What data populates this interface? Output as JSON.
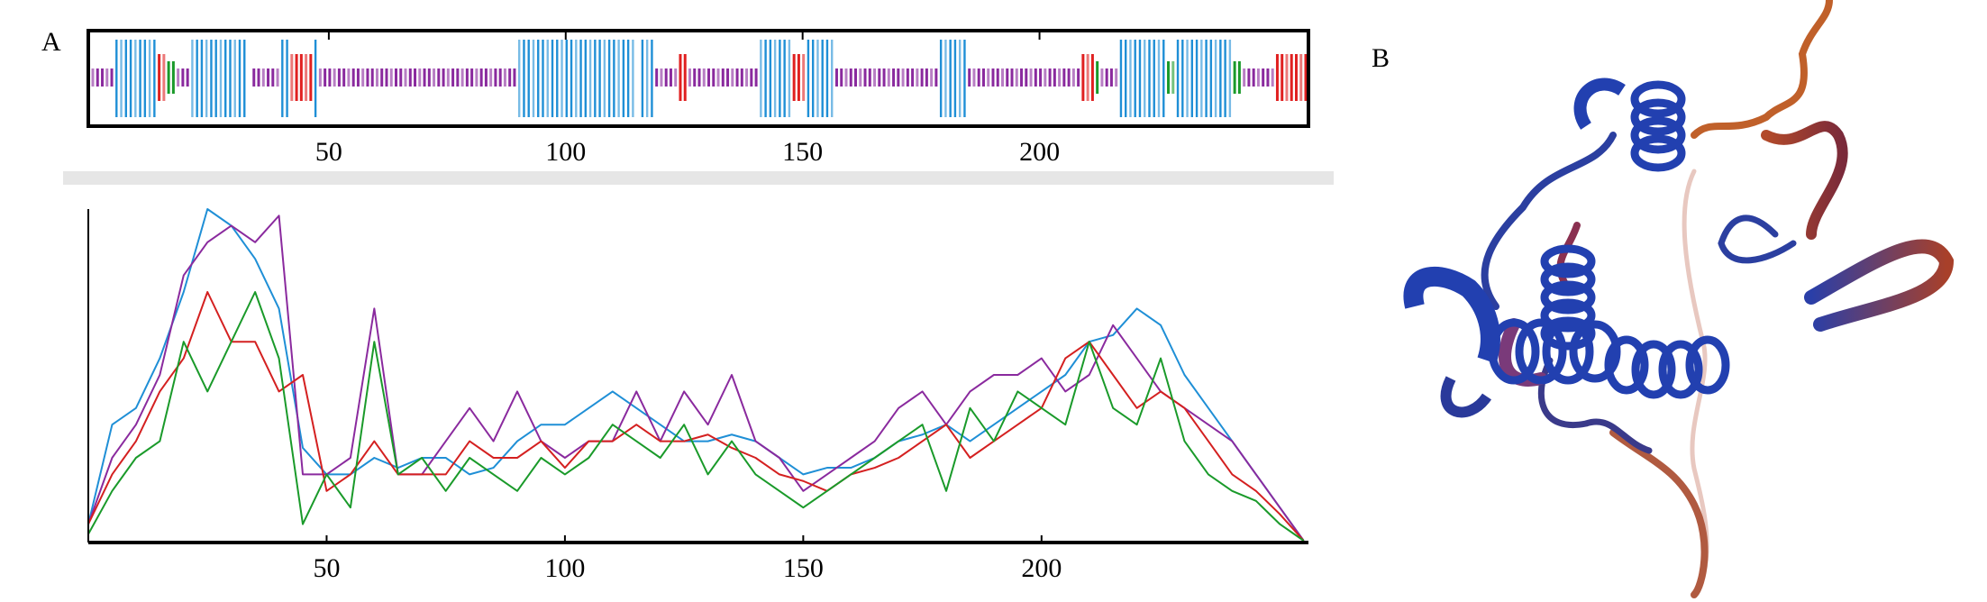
{
  "panels": {
    "a": "A",
    "b": "B"
  },
  "colors": {
    "helix": "#1f8fd6",
    "coil": "#8a2a9e",
    "strand": "#e02020",
    "turn": "#1a9a2a",
    "series": [
      "#1f8fd6",
      "#8a2a9e",
      "#d42020",
      "#1a9a2a"
    ]
  },
  "chart_data": [
    {
      "type": "sequence-track",
      "title": "",
      "xlim": [
        0,
        256
      ],
      "xticks": [
        "50",
        "100",
        "150",
        "200"
      ],
      "xtick_values": [
        50,
        100,
        150,
        200
      ],
      "segments": [
        {
          "start": 0,
          "end": 4,
          "type": "coil"
        },
        {
          "start": 5,
          "end": 13,
          "type": "helix"
        },
        {
          "start": 14,
          "end": 15,
          "type": "strand"
        },
        {
          "start": 16,
          "end": 17,
          "type": "turn"
        },
        {
          "start": 18,
          "end": 20,
          "type": "coil"
        },
        {
          "start": 21,
          "end": 32,
          "type": "helix"
        },
        {
          "start": 34,
          "end": 39,
          "type": "coil"
        },
        {
          "start": 40,
          "end": 41,
          "type": "helix"
        },
        {
          "start": 42,
          "end": 46,
          "type": "strand"
        },
        {
          "start": 47,
          "end": 47,
          "type": "helix"
        },
        {
          "start": 48,
          "end": 89,
          "type": "coil"
        },
        {
          "start": 90,
          "end": 114,
          "type": "helix"
        },
        {
          "start": 116,
          "end": 118,
          "type": "helix"
        },
        {
          "start": 119,
          "end": 123,
          "type": "coil"
        },
        {
          "start": 124,
          "end": 125,
          "type": "strand"
        },
        {
          "start": 126,
          "end": 140,
          "type": "coil"
        },
        {
          "start": 141,
          "end": 147,
          "type": "helix"
        },
        {
          "start": 148,
          "end": 150,
          "type": "strand"
        },
        {
          "start": 151,
          "end": 156,
          "type": "helix"
        },
        {
          "start": 157,
          "end": 178,
          "type": "coil"
        },
        {
          "start": 179,
          "end": 184,
          "type": "helix"
        },
        {
          "start": 185,
          "end": 208,
          "type": "coil"
        },
        {
          "start": 209,
          "end": 211,
          "type": "strand"
        },
        {
          "start": 212,
          "end": 212,
          "type": "turn"
        },
        {
          "start": 213,
          "end": 216,
          "type": "coil"
        },
        {
          "start": 217,
          "end": 226,
          "type": "helix"
        },
        {
          "start": 227,
          "end": 228,
          "type": "turn"
        },
        {
          "start": 229,
          "end": 240,
          "type": "helix"
        },
        {
          "start": 241,
          "end": 242,
          "type": "turn"
        },
        {
          "start": 243,
          "end": 249,
          "type": "coil"
        },
        {
          "start": 250,
          "end": 256,
          "type": "strand"
        }
      ]
    },
    {
      "type": "line",
      "title": "",
      "xlabel": "",
      "ylabel": "",
      "xlim": [
        0,
        256
      ],
      "ylim": [
        0,
        1
      ],
      "xticks": [
        "50",
        "100",
        "150",
        "200"
      ],
      "xtick_values": [
        50,
        100,
        150,
        200
      ],
      "grid": false,
      "x": [
        0,
        5,
        10,
        15,
        20,
        25,
        30,
        35,
        40,
        45,
        50,
        55,
        60,
        65,
        70,
        75,
        80,
        85,
        90,
        95,
        100,
        105,
        110,
        115,
        120,
        125,
        130,
        135,
        140,
        145,
        150,
        155,
        160,
        165,
        170,
        175,
        180,
        185,
        190,
        195,
        200,
        205,
        210,
        215,
        220,
        225,
        230,
        235,
        240,
        245,
        250,
        255
      ],
      "series": [
        {
          "name": "blue",
          "values": [
            0.05,
            0.35,
            0.4,
            0.55,
            0.75,
            1.0,
            0.95,
            0.85,
            0.7,
            0.28,
            0.2,
            0.2,
            0.25,
            0.22,
            0.25,
            0.25,
            0.2,
            0.22,
            0.3,
            0.35,
            0.35,
            0.4,
            0.45,
            0.4,
            0.35,
            0.3,
            0.3,
            0.32,
            0.3,
            0.25,
            0.2,
            0.22,
            0.22,
            0.25,
            0.3,
            0.32,
            0.35,
            0.3,
            0.35,
            0.4,
            0.45,
            0.5,
            0.6,
            0.62,
            0.7,
            0.65,
            0.5,
            0.4,
            0.3,
            0.2,
            0.1,
            0.0
          ]
        },
        {
          "name": "purple",
          "values": [
            0.05,
            0.25,
            0.35,
            0.5,
            0.8,
            0.9,
            0.95,
            0.9,
            0.98,
            0.2,
            0.2,
            0.25,
            0.7,
            0.2,
            0.2,
            0.3,
            0.4,
            0.3,
            0.45,
            0.3,
            0.25,
            0.3,
            0.3,
            0.45,
            0.3,
            0.45,
            0.35,
            0.5,
            0.3,
            0.25,
            0.15,
            0.2,
            0.25,
            0.3,
            0.4,
            0.45,
            0.35,
            0.45,
            0.5,
            0.5,
            0.55,
            0.45,
            0.5,
            0.65,
            0.55,
            0.45,
            0.4,
            0.35,
            0.3,
            0.2,
            0.1,
            0.0
          ]
        },
        {
          "name": "red",
          "values": [
            0.05,
            0.2,
            0.3,
            0.45,
            0.55,
            0.75,
            0.6,
            0.6,
            0.45,
            0.5,
            0.15,
            0.2,
            0.3,
            0.2,
            0.2,
            0.2,
            0.3,
            0.25,
            0.25,
            0.3,
            0.22,
            0.3,
            0.3,
            0.35,
            0.3,
            0.3,
            0.32,
            0.28,
            0.25,
            0.2,
            0.18,
            0.15,
            0.2,
            0.22,
            0.25,
            0.3,
            0.35,
            0.25,
            0.3,
            0.35,
            0.4,
            0.55,
            0.6,
            0.5,
            0.4,
            0.45,
            0.4,
            0.3,
            0.2,
            0.15,
            0.08,
            0.0
          ]
        },
        {
          "name": "green",
          "values": [
            0.02,
            0.15,
            0.25,
            0.3,
            0.6,
            0.45,
            0.6,
            0.75,
            0.55,
            0.05,
            0.2,
            0.1,
            0.6,
            0.2,
            0.25,
            0.15,
            0.25,
            0.2,
            0.15,
            0.25,
            0.2,
            0.25,
            0.35,
            0.3,
            0.25,
            0.35,
            0.2,
            0.3,
            0.2,
            0.15,
            0.1,
            0.15,
            0.2,
            0.25,
            0.3,
            0.35,
            0.15,
            0.4,
            0.3,
            0.45,
            0.4,
            0.35,
            0.6,
            0.4,
            0.35,
            0.55,
            0.3,
            0.2,
            0.15,
            0.12,
            0.05,
            0.0
          ]
        }
      ]
    }
  ]
}
